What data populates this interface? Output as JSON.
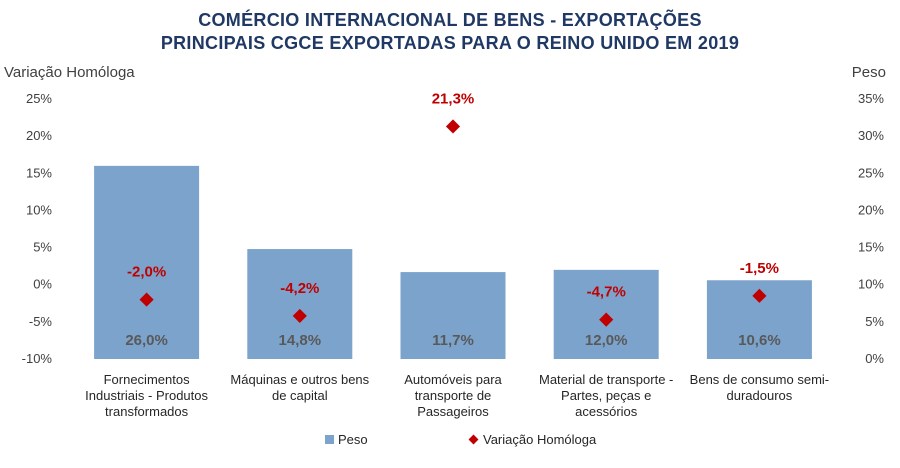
{
  "title_line1": "COMÉRCIO INTERNACIONAL  DE BENS - EXPORTAÇÕES",
  "title_line2": "PRINCIPAIS CGCE EXPORTADAS PARA O REINO UNIDO EM  2019",
  "left_axis_title": "Variação Homóloga",
  "right_axis_title": "Peso",
  "legend": {
    "peso": "Peso",
    "variacao": "Variação Homóloga"
  },
  "colors": {
    "bar": "#7BA3CC",
    "marker": "#C00000",
    "title": "#1F3864"
  },
  "chart_data": {
    "type": "bar",
    "categories": [
      [
        "Fornecimentos",
        "Industriais - Produtos",
        "transformados"
      ],
      [
        "Máquinas e outros bens",
        "de capital"
      ],
      [
        "Automóveis para",
        "transporte de",
        "Passageiros"
      ],
      [
        "Material de transporte -",
        "Partes, peças e",
        "acessórios"
      ],
      [
        "Bens de consumo semi-",
        "duradouros"
      ]
    ],
    "series": [
      {
        "name": "Peso",
        "type": "bar",
        "axis": "right",
        "values": [
          26.0,
          14.8,
          11.7,
          12.0,
          10.6
        ],
        "labels": [
          "26,0%",
          "14,8%",
          "11,7%",
          "12,0%",
          "10,6%"
        ]
      },
      {
        "name": "Variação Homóloga",
        "type": "scatter",
        "axis": "left",
        "values": [
          -2.0,
          -4.2,
          21.3,
          -4.7,
          -1.5
        ],
        "labels": [
          "-2,0%",
          "-4,2%",
          "21,3%",
          "-4,7%",
          "-1,5%"
        ]
      }
    ],
    "left_axis": {
      "min": -10,
      "max": 25,
      "step": 5,
      "tick_labels": [
        "-10%",
        "-5%",
        "0%",
        "5%",
        "10%",
        "15%",
        "20%",
        "25%"
      ]
    },
    "right_axis": {
      "min": 0,
      "max": 35,
      "step": 5,
      "tick_labels": [
        "0%",
        "5%",
        "10%",
        "15%",
        "20%",
        "25%",
        "30%",
        "35%"
      ]
    },
    "grid": false,
    "legend_position": "bottom"
  }
}
